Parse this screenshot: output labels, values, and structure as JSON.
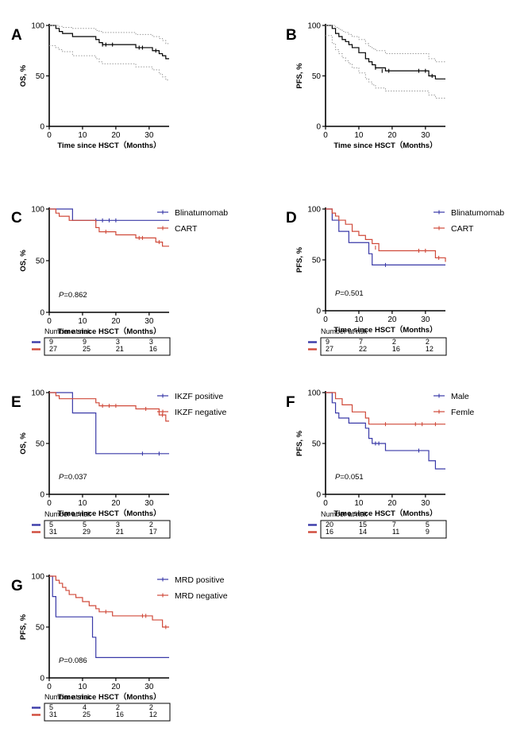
{
  "chart_data": [
    {
      "type": "line",
      "panel": "A",
      "xlabel": "Time since HSCT（Months）",
      "ylabel": "OS, %",
      "xlim": [
        0,
        36
      ],
      "ylim": [
        0,
        100
      ],
      "xticks": [
        0,
        10,
        20,
        30
      ],
      "yticks": [
        0,
        50,
        100
      ],
      "pvalue": "",
      "series": [
        {
          "name": "",
          "color": "#000000",
          "style": "step",
          "x": [
            0,
            2,
            3,
            4,
            7,
            14,
            15,
            16,
            26,
            31,
            33,
            34,
            35,
            36
          ],
          "y": [
            100,
            97,
            94,
            92,
            89,
            86,
            83,
            81,
            78,
            75,
            72,
            70,
            67,
            67
          ],
          "censors": [
            [
              16,
              81
            ],
            [
              17,
              81
            ],
            [
              19,
              81
            ],
            [
              27,
              78
            ],
            [
              28,
              78
            ],
            [
              32,
              75
            ]
          ]
        },
        {
          "name": "",
          "color": "#9a9a9a",
          "style": "dotted-step",
          "x": [
            0,
            2,
            3,
            4,
            7,
            14,
            15,
            16,
            26,
            31,
            33,
            34,
            35,
            36
          ],
          "y": [
            100,
            100,
            99,
            98,
            97,
            95,
            94,
            93,
            91,
            89,
            87,
            85,
            82,
            82
          ]
        },
        {
          "name": "",
          "color": "#9a9a9a",
          "style": "dotted-step",
          "x": [
            0,
            2,
            3,
            4,
            7,
            14,
            15,
            16,
            26,
            31,
            33,
            34,
            35,
            36
          ],
          "y": [
            80,
            78,
            76,
            74,
            70,
            67,
            64,
            62,
            59,
            56,
            52,
            49,
            46,
            46
          ]
        }
      ]
    },
    {
      "type": "line",
      "panel": "B",
      "xlabel": "Time since HSCT（Months）",
      "ylabel": "PFS, %",
      "xlim": [
        0,
        36
      ],
      "ylim": [
        0,
        100
      ],
      "xticks": [
        0,
        10,
        20,
        30
      ],
      "yticks": [
        0,
        50,
        100
      ],
      "pvalue": "",
      "series": [
        {
          "name": "",
          "color": "#000000",
          "style": "step",
          "x": [
            0,
            2,
            3,
            4,
            5,
            6,
            7,
            8,
            10,
            12,
            13,
            14,
            15,
            18,
            31,
            33,
            36
          ],
          "y": [
            100,
            97,
            92,
            89,
            86,
            84,
            81,
            78,
            73,
            67,
            64,
            61,
            58,
            55,
            50,
            47,
            47
          ],
          "censors": [
            [
              15,
              58
            ],
            [
              17,
              55
            ],
            [
              19,
              55
            ],
            [
              28,
              55
            ],
            [
              30,
              55
            ],
            [
              32,
              50
            ]
          ]
        },
        {
          "name": "",
          "color": "#9a9a9a",
          "style": "dotted-step",
          "x": [
            0,
            2,
            3,
            4,
            5,
            6,
            7,
            8,
            10,
            12,
            13,
            14,
            15,
            18,
            31,
            33,
            36
          ],
          "y": [
            100,
            100,
            98,
            96,
            94,
            93,
            91,
            89,
            86,
            82,
            79,
            77,
            75,
            72,
            67,
            64,
            64
          ]
        },
        {
          "name": "",
          "color": "#9a9a9a",
          "style": "dotted-step",
          "x": [
            0,
            2,
            3,
            4,
            5,
            6,
            7,
            8,
            10,
            12,
            13,
            14,
            15,
            18,
            31,
            33,
            36
          ],
          "y": [
            90,
            82,
            76,
            72,
            68,
            65,
            62,
            58,
            53,
            47,
            44,
            41,
            38,
            35,
            31,
            28,
            28
          ]
        }
      ]
    },
    {
      "type": "line",
      "panel": "C",
      "xlabel": "Time since HSCT（Months）",
      "ylabel": "OS, %",
      "xlim": [
        0,
        36
      ],
      "ylim": [
        0,
        100
      ],
      "xticks": [
        0,
        10,
        20,
        30
      ],
      "yticks": [
        0,
        50,
        100
      ],
      "pvalue": "P=0.862",
      "legend_position": "top-right",
      "series": [
        {
          "name": "Blinatumomab",
          "color": "#3a3aa8",
          "style": "step",
          "x": [
            0,
            7,
            36
          ],
          "y": [
            100,
            89,
            89
          ],
          "censors": [
            [
              14,
              89
            ],
            [
              16,
              89
            ],
            [
              18,
              89
            ],
            [
              20,
              89
            ]
          ]
        },
        {
          "name": "CART",
          "color": "#d04a3a",
          "style": "step",
          "x": [
            0,
            2,
            3,
            6,
            14,
            15,
            20,
            26,
            32,
            34,
            36
          ],
          "y": [
            100,
            96,
            93,
            89,
            82,
            78,
            75,
            72,
            68,
            64,
            64
          ],
          "censors": [
            [
              17,
              78
            ],
            [
              27,
              72
            ],
            [
              28,
              72
            ],
            [
              33,
              68
            ]
          ]
        }
      ],
      "risk_table": {
        "title": "Number at risk",
        "rows": [
          {
            "color": "#3a3aa8",
            "values": [
              "9",
              "9",
              "3",
              "3"
            ]
          },
          {
            "color": "#d04a3a",
            "values": [
              "27",
              "25",
              "21",
              "16"
            ]
          }
        ]
      }
    },
    {
      "type": "line",
      "panel": "D",
      "xlabel": "Time since HSCT（Months）",
      "ylabel": "PFS, %",
      "xlim": [
        0,
        36
      ],
      "ylim": [
        0,
        100
      ],
      "xticks": [
        0,
        10,
        20,
        30
      ],
      "yticks": [
        0,
        50,
        100
      ],
      "pvalue": "P=0.501",
      "legend_position": "top-right",
      "series": [
        {
          "name": "Blinatumomab",
          "color": "#3a3aa8",
          "style": "step",
          "x": [
            0,
            2,
            4,
            7,
            13,
            14,
            36
          ],
          "y": [
            100,
            89,
            78,
            67,
            56,
            45,
            45
          ],
          "censors": [
            [
              18,
              45
            ]
          ]
        },
        {
          "name": "CART",
          "color": "#d04a3a",
          "style": "step",
          "x": [
            0,
            2,
            3,
            4,
            6,
            8,
            10,
            12,
            14,
            16,
            33,
            36
          ],
          "y": [
            100,
            96,
            93,
            89,
            85,
            78,
            74,
            70,
            66,
            59,
            52,
            48
          ],
          "censors": [
            [
              15,
              62
            ],
            [
              28,
              59
            ],
            [
              30,
              59
            ],
            [
              34,
              52
            ]
          ]
        }
      ],
      "risk_table": {
        "title": "Number at risk",
        "rows": [
          {
            "color": "#3a3aa8",
            "values": [
              "9",
              "7",
              "2",
              "2"
            ]
          },
          {
            "color": "#d04a3a",
            "values": [
              "27",
              "22",
              "16",
              "12"
            ]
          }
        ]
      }
    },
    {
      "type": "line",
      "panel": "E",
      "xlabel": "Time since HSCT（Months）",
      "ylabel": "OS, %",
      "xlim": [
        0,
        36
      ],
      "ylim": [
        0,
        100
      ],
      "xticks": [
        0,
        10,
        20,
        30
      ],
      "yticks": [
        0,
        50,
        100
      ],
      "pvalue": "P=0.037",
      "legend_position": "top-right",
      "series": [
        {
          "name": "IKZF positive",
          "color": "#3a3aa8",
          "style": "step",
          "x": [
            0,
            7,
            14,
            36
          ],
          "y": [
            100,
            80,
            40,
            40
          ],
          "censors": [
            [
              28,
              40
            ],
            [
              33,
              40
            ]
          ]
        },
        {
          "name": "IKZF negative",
          "color": "#d04a3a",
          "style": "step",
          "x": [
            0,
            2,
            3,
            14,
            15,
            26,
            33,
            35,
            36
          ],
          "y": [
            100,
            97,
            94,
            90,
            87,
            84,
            78,
            72,
            72
          ],
          "censors": [
            [
              16,
              87
            ],
            [
              18,
              87
            ],
            [
              20,
              87
            ],
            [
              29,
              84
            ],
            [
              34,
              78
            ]
          ]
        }
      ],
      "risk_table": {
        "title": "Number at risk",
        "rows": [
          {
            "color": "#3a3aa8",
            "values": [
              "5",
              "5",
              "3",
              "2"
            ]
          },
          {
            "color": "#d04a3a",
            "values": [
              "31",
              "29",
              "21",
              "17"
            ]
          }
        ]
      }
    },
    {
      "type": "line",
      "panel": "F",
      "xlabel": "Time since HSCT（Months）",
      "ylabel": "PFS, %",
      "xlim": [
        0,
        36
      ],
      "ylim": [
        0,
        100
      ],
      "xticks": [
        0,
        10,
        20,
        30
      ],
      "yticks": [
        0,
        50,
        100
      ],
      "pvalue": "P=0.051",
      "legend_position": "top-right",
      "series": [
        {
          "name": "Male",
          "color": "#3a3aa8",
          "style": "step",
          "x": [
            0,
            2,
            3,
            4,
            7,
            12,
            13,
            14,
            18,
            31,
            33,
            36
          ],
          "y": [
            100,
            90,
            80,
            75,
            70,
            65,
            55,
            50,
            43,
            33,
            25,
            25
          ],
          "censors": [
            [
              15,
              50
            ],
            [
              16,
              50
            ],
            [
              28,
              43
            ]
          ]
        },
        {
          "name": "Femle",
          "color": "#d04a3a",
          "style": "step",
          "x": [
            0,
            3,
            5,
            8,
            12,
            13,
            36
          ],
          "y": [
            100,
            94,
            88,
            81,
            75,
            69,
            69
          ],
          "censors": [
            [
              18,
              69
            ],
            [
              27,
              69
            ],
            [
              29,
              69
            ],
            [
              33,
              69
            ]
          ]
        }
      ],
      "risk_table": {
        "title": "Number at risk",
        "rows": [
          {
            "color": "#3a3aa8",
            "values": [
              "20",
              "15",
              "7",
              "5"
            ]
          },
          {
            "color": "#d04a3a",
            "values": [
              "16",
              "14",
              "11",
              "9"
            ]
          }
        ]
      }
    },
    {
      "type": "line",
      "panel": "G",
      "xlabel": "Time since HSCT（Months）",
      "ylabel": "PFS, %",
      "xlim": [
        0,
        36
      ],
      "ylim": [
        0,
        100
      ],
      "xticks": [
        0,
        10,
        20,
        30
      ],
      "yticks": [
        0,
        50,
        100
      ],
      "pvalue": "P=0.086",
      "legend_position": "top-right",
      "series": [
        {
          "name": "MRD positive",
          "color": "#3a3aa8",
          "style": "step",
          "x": [
            0,
            1,
            2,
            13,
            14,
            36
          ],
          "y": [
            100,
            80,
            60,
            40,
            20,
            20
          ],
          "censors": []
        },
        {
          "name": "MRD negative",
          "color": "#d04a3a",
          "style": "step",
          "x": [
            0,
            2,
            3,
            4,
            5,
            6,
            8,
            10,
            12,
            14,
            15,
            19,
            31,
            34,
            36
          ],
          "y": [
            100,
            96,
            93,
            89,
            86,
            82,
            79,
            75,
            71,
            68,
            65,
            61,
            57,
            50,
            50
          ],
          "censors": [
            [
              17,
              65
            ],
            [
              28,
              61
            ],
            [
              29,
              61
            ],
            [
              35,
              50
            ]
          ]
        }
      ],
      "risk_table": {
        "title": "Number at risk",
        "rows": [
          {
            "color": "#3a3aa8",
            "values": [
              "5",
              "4",
              "2",
              "2"
            ]
          },
          {
            "color": "#d04a3a",
            "values": [
              "31",
              "25",
              "16",
              "12"
            ]
          }
        ]
      }
    }
  ]
}
